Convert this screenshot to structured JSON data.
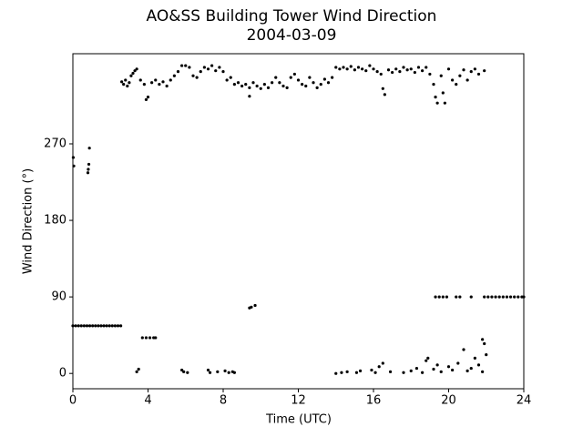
{
  "chart_data": {
    "type": "scatter",
    "title": "AO&SS Building Tower Wind Direction",
    "subtitle": "2004-03-09",
    "x_label": "Time (UTC)",
    "y_label": "Wind Direction (°)",
    "color": "#000000",
    "xlim": [
      0,
      24
    ],
    "xticks": [
      0,
      4,
      8,
      12,
      16,
      20,
      24
    ],
    "ylim": [
      -18,
      376
    ],
    "yticks": [
      0,
      90,
      180,
      270
    ],
    "grid": false,
    "x": [
      0,
      0.15,
      0.3,
      0.45,
      0.6,
      0.75,
      0.9,
      1.05,
      1.2,
      1.35,
      1.5,
      1.65,
      1.8,
      1.95,
      2.1,
      2.25,
      2.4,
      2.55,
      0.02,
      0.05,
      0.8,
      0.82,
      0.85,
      0.88,
      2.6,
      2.7,
      2.8,
      2.9,
      3.0,
      3.1,
      3.2,
      3.3,
      3.4,
      3.6,
      3.8,
      3.9,
      4.0,
      4.2,
      4.4,
      4.6,
      4.8,
      5.0,
      5.2,
      5.4,
      5.6,
      5.8,
      6.0,
      6.2,
      6.4,
      6.6,
      6.8,
      7.0,
      7.2,
      7.4,
      7.6,
      7.8,
      8.0,
      8.2,
      8.4,
      8.6,
      8.8,
      9.0,
      9.2,
      9.4,
      9.6,
      9.8,
      10.0,
      10.2,
      10.4,
      10.6,
      10.8,
      11.0,
      11.2,
      11.4,
      11.6,
      11.8,
      12.0,
      12.2,
      12.4,
      12.6,
      12.8,
      13.0,
      13.2,
      13.4,
      13.6,
      13.8,
      14.0,
      14.2,
      14.4,
      14.6,
      14.8,
      15.0,
      15.2,
      15.4,
      15.6,
      15.8,
      16.0,
      16.2,
      16.4,
      16.5,
      16.6,
      16.8,
      17.0,
      17.2,
      17.4,
      17.6,
      17.8,
      18.0,
      18.2,
      18.4,
      18.6,
      18.8,
      19.0,
      19.2,
      19.3,
      19.4,
      19.6,
      19.7,
      19.8,
      20.0,
      20.2,
      20.4,
      20.6,
      20.8,
      21.0,
      21.2,
      21.4,
      21.6,
      21.9,
      9.4,
      3.7,
      3.9,
      4.1,
      4.3,
      4.4,
      9.4,
      9.5,
      9.7,
      3.4,
      3.5,
      5.8,
      5.9,
      6.1,
      7.2,
      7.3,
      7.7,
      8.1,
      8.3,
      8.5,
      8.6,
      14.0,
      14.3,
      14.6,
      15.1,
      15.3,
      15.9,
      16.1,
      16.3,
      16.5,
      16.9,
      17.6,
      18.0,
      18.3,
      18.6,
      18.8,
      18.9,
      19.2,
      19.4,
      19.6,
      20.0,
      20.2,
      20.5,
      20.8,
      21.0,
      21.2,
      21.4,
      21.6,
      21.8,
      21.9,
      22.0,
      21.8,
      19.3,
      19.5,
      19.7,
      19.9,
      20.4,
      20.6,
      21.2,
      21.9,
      22.1,
      22.3,
      22.5,
      22.7,
      22.9,
      23.1,
      23.3,
      23.5,
      23.7,
      23.9,
      24.0
    ],
    "values": [
      56,
      56,
      56,
      56,
      56,
      56,
      56,
      56,
      56,
      56,
      56,
      56,
      56,
      56,
      56,
      56,
      56,
      56,
      254,
      244,
      236,
      240,
      246,
      265,
      343,
      340,
      345,
      338,
      342,
      350,
      353,
      356,
      358,
      345,
      340,
      322,
      325,
      342,
      345,
      340,
      343,
      338,
      345,
      350,
      355,
      362,
      362,
      360,
      350,
      348,
      355,
      360,
      358,
      362,
      356,
      360,
      355,
      345,
      348,
      340,
      342,
      338,
      340,
      336,
      342,
      338,
      335,
      340,
      336,
      342,
      348,
      342,
      338,
      336,
      348,
      352,
      345,
      340,
      338,
      348,
      342,
      336,
      340,
      346,
      342,
      348,
      360,
      358,
      360,
      358,
      361,
      357,
      360,
      358,
      356,
      362,
      358,
      355,
      352,
      335,
      328,
      357,
      354,
      358,
      355,
      360,
      357,
      358,
      354,
      360,
      356,
      360,
      352,
      340,
      325,
      318,
      350,
      330,
      318,
      358,
      345,
      340,
      350,
      357,
      345,
      355,
      358,
      352,
      356,
      326,
      42,
      42,
      42,
      42,
      42,
      77,
      78,
      80,
      2,
      5,
      4,
      2,
      1,
      4,
      1,
      2,
      3,
      1,
      2,
      1,
      0,
      1,
      2,
      1,
      3,
      4,
      1,
      8,
      12,
      2,
      1,
      3,
      6,
      1,
      15,
      18,
      5,
      10,
      2,
      8,
      4,
      12,
      28,
      3,
      6,
      18,
      10,
      40,
      35,
      22,
      2,
      90,
      90,
      90,
      90,
      90,
      90,
      90,
      90,
      90,
      90,
      90,
      90,
      90,
      90,
      90,
      90,
      90,
      90,
      90
    ]
  }
}
